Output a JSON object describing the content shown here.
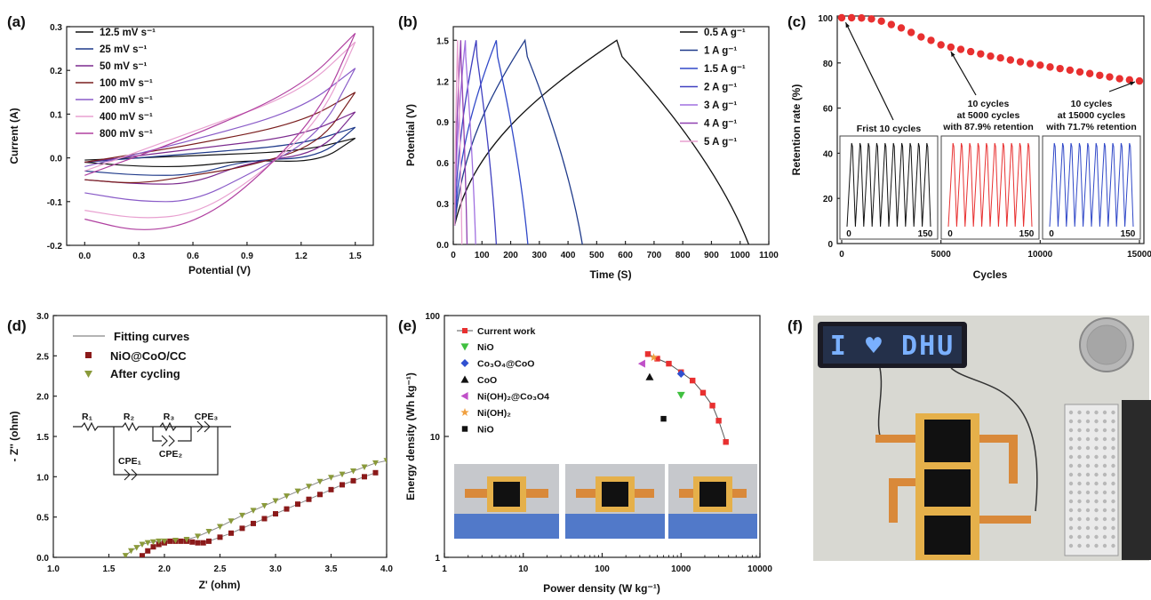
{
  "panel_letters": [
    "(a)",
    "(b)",
    "(c)",
    "(d)",
    "(e)",
    "(f)"
  ],
  "colors": {
    "black": "#111111",
    "navy": "#1f3a8a",
    "purple": "#7b2a8e",
    "brown": "#7a1e1e",
    "violet": "#8a5cc8",
    "pink": "#e8a0d0",
    "magenta": "#b040a0",
    "blue2": "#3048c8",
    "blue3": "#4040c0",
    "violet2": "#a070e0",
    "purple2": "#9040b0",
    "red": "#e83030",
    "darkred": "#8b1a1a",
    "olive": "#8a9a3a",
    "green": "#40c040",
    "bluediamond": "#3050d0",
    "triangle": "#111111",
    "lilac": "#c050c8",
    "orange": "#f0a040"
  },
  "chart_data": [
    {
      "id": "a",
      "type": "line",
      "xlabel": "Potential (V)",
      "ylabel": "Current (A)",
      "xlim": [
        -0.1,
        1.6
      ],
      "ylim": [
        -0.2,
        0.3
      ],
      "xticks": [
        "0.0",
        "0.3",
        "0.6",
        "0.9",
        "1.2",
        "1.5"
      ],
      "yticks": [
        "-0.2",
        "-0.1",
        "0.0",
        "0.1",
        "0.2",
        "0.3"
      ],
      "legend_position": "top-left",
      "series": [
        {
          "name": "12.5 mV s⁻¹",
          "color": "#111111",
          "upper": [
            [
              0,
              -0.005
            ],
            [
              0.6,
              0.005
            ],
            [
              1.2,
              0.015
            ],
            [
              1.5,
              0.045
            ]
          ],
          "lower": [
            [
              1.5,
              0.045
            ],
            [
              1.3,
              -0.01
            ],
            [
              0.9,
              -0.005
            ],
            [
              0.6,
              -0.02
            ],
            [
              0.3,
              -0.02
            ],
            [
              0,
              -0.01
            ]
          ]
        },
        {
          "name": "25 mV s⁻¹",
          "color": "#1f3a8a",
          "upper": [
            [
              0,
              -0.01
            ],
            [
              0.6,
              0.01
            ],
            [
              1.2,
              0.03
            ],
            [
              1.5,
              0.07
            ]
          ],
          "lower": [
            [
              1.5,
              0.07
            ],
            [
              1.3,
              0.0
            ],
            [
              0.9,
              -0.005
            ],
            [
              0.6,
              -0.04
            ],
            [
              0.3,
              -0.04
            ],
            [
              0,
              -0.03
            ]
          ]
        },
        {
          "name": "50 mV s⁻¹",
          "color": "#7b2a8e",
          "upper": [
            [
              0,
              -0.01
            ],
            [
              0.6,
              0.02
            ],
            [
              1.2,
              0.05
            ],
            [
              1.5,
              0.105
            ]
          ],
          "lower": [
            [
              1.5,
              0.105
            ],
            [
              1.3,
              0.01
            ],
            [
              0.9,
              -0.01
            ],
            [
              0.6,
              -0.06
            ],
            [
              0.3,
              -0.06
            ],
            [
              0,
              -0.05
            ]
          ]
        },
        {
          "name": "100 mV s⁻¹",
          "color": "#7a1e1e",
          "upper": [
            [
              0,
              -0.01
            ],
            [
              0.6,
              0.03
            ],
            [
              1.2,
              0.08
            ],
            [
              1.5,
              0.15
            ]
          ],
          "lower": [
            [
              1.5,
              0.15
            ],
            [
              1.3,
              0.03
            ],
            [
              0.9,
              -0.02
            ],
            [
              0.6,
              -0.04
            ],
            [
              0.3,
              -0.06
            ],
            [
              0,
              -0.05
            ]
          ]
        },
        {
          "name": "200 mV s⁻¹",
          "color": "#8a5cc8",
          "upper": [
            [
              0,
              -0.02
            ],
            [
              0.6,
              0.04
            ],
            [
              1.2,
              0.11
            ],
            [
              1.5,
              0.205
            ]
          ],
          "lower": [
            [
              1.5,
              0.205
            ],
            [
              1.3,
              0.05
            ],
            [
              0.9,
              -0.04
            ],
            [
              0.6,
              -0.1
            ],
            [
              0.3,
              -0.1
            ],
            [
              0,
              -0.08
            ]
          ]
        },
        {
          "name": "400 mV s⁻¹",
          "color": "#e8a0d0",
          "upper": [
            [
              0,
              -0.03
            ],
            [
              0.6,
              0.06
            ],
            [
              1.2,
              0.15
            ],
            [
              1.5,
              0.265
            ]
          ],
          "lower": [
            [
              1.5,
              0.265
            ],
            [
              1.3,
              0.08
            ],
            [
              0.9,
              -0.06
            ],
            [
              0.6,
              -0.13
            ],
            [
              0.3,
              -0.14
            ],
            [
              0,
              -0.12
            ]
          ]
        },
        {
          "name": "800 mV s⁻¹",
          "color": "#b040a0",
          "upper": [
            [
              0,
              -0.04
            ],
            [
              0.6,
              0.05
            ],
            [
              1.2,
              0.16
            ],
            [
              1.5,
              0.285
            ]
          ],
          "lower": [
            [
              1.5,
              0.285
            ],
            [
              1.3,
              0.1
            ],
            [
              0.9,
              -0.07
            ],
            [
              0.6,
              -0.15
            ],
            [
              0.3,
              -0.17
            ],
            [
              0,
              -0.14
            ]
          ]
        }
      ]
    },
    {
      "id": "b",
      "type": "line",
      "xlabel": "Time (S)",
      "ylabel": "Potential (V)",
      "xlim": [
        0,
        1100
      ],
      "ylim": [
        0,
        1.6
      ],
      "xticks": [
        "0",
        "100",
        "200",
        "300",
        "400",
        "500",
        "600",
        "700",
        "800",
        "900",
        "1000",
        "1100"
      ],
      "yticks": [
        "0.0",
        "0.3",
        "0.6",
        "0.9",
        "1.2",
        "1.5"
      ],
      "legend_position": "top-right",
      "series": [
        {
          "name": "0.5 A g⁻¹",
          "color": "#111111",
          "peak": 570,
          "end": 1030
        },
        {
          "name": "1 A g⁻¹",
          "color": "#1f3a8a",
          "peak": 250,
          "end": 450
        },
        {
          "name": "1.5 A g⁻¹",
          "color": "#3048c8",
          "peak": 150,
          "end": 260
        },
        {
          "name": "2 A g⁻¹",
          "color": "#4040c0",
          "peak": 80,
          "end": 150
        },
        {
          "name": "3 A g⁻¹",
          "color": "#a070e0",
          "peak": 42,
          "end": 78
        },
        {
          "name": "4 A g⁻¹",
          "color": "#9040b0",
          "peak": 26,
          "end": 48
        },
        {
          "name": "5 A g⁻¹",
          "color": "#e8a0d0",
          "peak": 15,
          "end": 30
        }
      ]
    },
    {
      "id": "c",
      "type": "scatter",
      "xlabel": "Cycles",
      "ylabel": "Retention rate (%)",
      "xlim": [
        0,
        15000
      ],
      "ylim": [
        0,
        100
      ],
      "xticks": [
        "0",
        "5000",
        "10000",
        "15000"
      ],
      "yticks": [
        "0",
        "20",
        "40",
        "60",
        "80",
        "100"
      ],
      "points": [
        [
          0,
          100
        ],
        [
          500,
          100
        ],
        [
          1000,
          99.9
        ],
        [
          1500,
          99.5
        ],
        [
          2000,
          98.5
        ],
        [
          2500,
          97
        ],
        [
          3000,
          95.5
        ],
        [
          3500,
          93.5
        ],
        [
          4000,
          91.5
        ],
        [
          4500,
          90
        ],
        [
          5000,
          88
        ],
        [
          5500,
          87
        ],
        [
          6000,
          86
        ],
        [
          6500,
          85
        ],
        [
          7000,
          84
        ],
        [
          7500,
          83
        ],
        [
          8000,
          82.2
        ],
        [
          8500,
          81.3
        ],
        [
          9000,
          80.5
        ],
        [
          9500,
          79.7
        ],
        [
          10000,
          79
        ],
        [
          10500,
          78.2
        ],
        [
          11000,
          77.5
        ],
        [
          11500,
          76.8
        ],
        [
          12000,
          76
        ],
        [
          12500,
          75.3
        ],
        [
          13000,
          74.5
        ],
        [
          13500,
          73.8
        ],
        [
          14000,
          73
        ],
        [
          14500,
          72.5
        ],
        [
          15000,
          72
        ]
      ],
      "annotations": {
        "first": "Frist 10 cycles",
        "mid": [
          "10 cycles",
          "at 5000 cycles",
          "with 87.9% retention"
        ],
        "last": [
          "10 cycles",
          "at 15000 cycles",
          "with 71.7% retention"
        ]
      },
      "inset_ticks": [
        [
          "0",
          "150"
        ],
        [
          "0",
          "150"
        ],
        [
          "0",
          "150"
        ]
      ]
    },
    {
      "id": "d",
      "type": "scatter",
      "xlabel": "Z' (ohm)",
      "ylabel": "- Z'' (ohm)",
      "xlim": [
        1.0,
        4.0
      ],
      "ylim": [
        0,
        3.0
      ],
      "xticks": [
        "1.0",
        "1.5",
        "2.0",
        "2.5",
        "3.0",
        "3.5",
        "4.0"
      ],
      "yticks": [
        "0.0",
        "0.5",
        "1.0",
        "1.5",
        "2.0",
        "2.5",
        "3.0"
      ],
      "legend_position": "top-left",
      "legend": [
        "Fitting curves",
        "NiO@CoO/CC",
        "After cycling"
      ],
      "circuit_labels": [
        "R₁",
        "R₂",
        "R₃",
        "CPE₃",
        "CPE₂",
        "CPE₁"
      ],
      "series_nio": [
        [
          1.8,
          0.02
        ],
        [
          1.85,
          0.08
        ],
        [
          1.9,
          0.13
        ],
        [
          1.95,
          0.16
        ],
        [
          2.0,
          0.18
        ],
        [
          2.05,
          0.2
        ],
        [
          2.1,
          0.2
        ],
        [
          2.15,
          0.2
        ],
        [
          2.2,
          0.2
        ],
        [
          2.25,
          0.19
        ],
        [
          2.3,
          0.18
        ],
        [
          2.35,
          0.18
        ],
        [
          2.4,
          0.2
        ],
        [
          2.5,
          0.25
        ],
        [
          2.6,
          0.3
        ],
        [
          2.7,
          0.36
        ],
        [
          2.8,
          0.42
        ],
        [
          2.9,
          0.48
        ],
        [
          3.0,
          0.54
        ],
        [
          3.1,
          0.6
        ],
        [
          3.2,
          0.66
        ],
        [
          3.3,
          0.72
        ],
        [
          3.4,
          0.78
        ],
        [
          3.5,
          0.84
        ],
        [
          3.6,
          0.9
        ],
        [
          3.7,
          0.95
        ],
        [
          3.8,
          1.0
        ],
        [
          3.9,
          1.05
        ]
      ],
      "series_after": [
        [
          1.65,
          0.02
        ],
        [
          1.7,
          0.08
        ],
        [
          1.75,
          0.12
        ],
        [
          1.8,
          0.16
        ],
        [
          1.85,
          0.18
        ],
        [
          1.9,
          0.19
        ],
        [
          1.95,
          0.2
        ],
        [
          2.0,
          0.2
        ],
        [
          2.1,
          0.21
        ],
        [
          2.2,
          0.22
        ],
        [
          2.3,
          0.26
        ],
        [
          2.4,
          0.32
        ],
        [
          2.5,
          0.38
        ],
        [
          2.6,
          0.45
        ],
        [
          2.7,
          0.52
        ],
        [
          2.8,
          0.58
        ],
        [
          2.9,
          0.64
        ],
        [
          3.0,
          0.7
        ],
        [
          3.1,
          0.76
        ],
        [
          3.2,
          0.82
        ],
        [
          3.3,
          0.88
        ],
        [
          3.4,
          0.94
        ],
        [
          3.5,
          0.99
        ],
        [
          3.6,
          1.03
        ],
        [
          3.7,
          1.07
        ],
        [
          3.8,
          1.12
        ],
        [
          3.9,
          1.17
        ],
        [
          4.0,
          1.2
        ]
      ]
    },
    {
      "id": "e",
      "type": "scatter",
      "xlabel": "Power density (W kg⁻¹)",
      "ylabel": "Energy density (Wh kg⁻¹)",
      "xscale": "log",
      "yscale": "log",
      "xlim": [
        1,
        10000
      ],
      "ylim": [
        1,
        100
      ],
      "xticks": [
        "1",
        "10",
        "100",
        "1000",
        "10000"
      ],
      "yticks": [
        "1",
        "10",
        "100"
      ],
      "legend_position": "top-left",
      "legend": [
        "Current work",
        "NiO",
        "Co₃O₄@CoO",
        "CoO",
        "Ni(OH)₂@Co₃O4",
        "Ni(OH)₂",
        "NiO"
      ],
      "current_work": [
        [
          380,
          48
        ],
        [
          500,
          44
        ],
        [
          700,
          40
        ],
        [
          1000,
          34
        ],
        [
          1400,
          29
        ],
        [
          1900,
          23
        ],
        [
          2500,
          18
        ],
        [
          3000,
          13.5
        ],
        [
          3700,
          9
        ]
      ],
      "others": [
        {
          "label": "NiO",
          "marker": "tri-down",
          "color": "#40c040",
          "point": [
            1000,
            22
          ]
        },
        {
          "label": "Co₃O₄@CoO",
          "marker": "diamond",
          "color": "#3050d0",
          "point": [
            1000,
            33
          ]
        },
        {
          "label": "CoO",
          "marker": "tri-up",
          "color": "#111111",
          "point": [
            400,
            31
          ]
        },
        {
          "label": "Ni(OH)₂@Co₃O4",
          "marker": "tri-left",
          "color": "#c050c8",
          "point": [
            320,
            40
          ]
        },
        {
          "label": "Ni(OH)₂",
          "marker": "star",
          "color": "#f0a040",
          "point": [
            450,
            45
          ]
        },
        {
          "label": "NiO",
          "marker": "square",
          "color": "#111111",
          "point": [
            600,
            14
          ]
        }
      ]
    }
  ],
  "panel_f": {
    "led_text": "I ♥ DHU"
  }
}
